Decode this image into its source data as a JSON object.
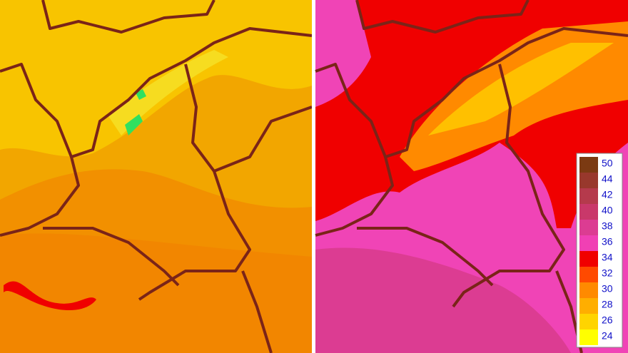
{
  "legend": {
    "labels": [
      "50",
      "44",
      "42",
      "40",
      "38",
      "36",
      "34",
      "32",
      "30",
      "28",
      "26",
      "24"
    ],
    "colors": [
      "#7b3a12",
      "#98382c",
      "#b53a4c",
      "#c9386a",
      "#dc3c92",
      "#f040b4",
      "#f00000",
      "#ff4a00",
      "#ff8a00",
      "#ffae00",
      "#ffd400",
      "#ffff00"
    ]
  }
}
